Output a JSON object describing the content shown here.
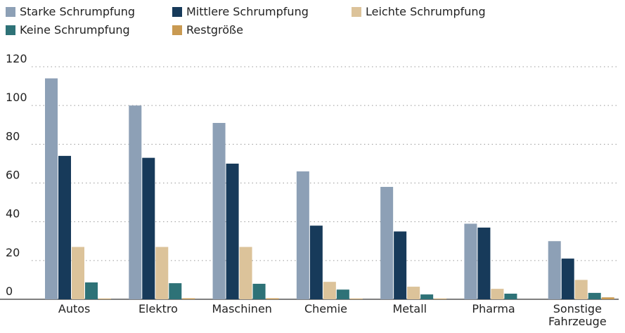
{
  "chart_data": {
    "type": "bar",
    "categories": [
      "Autos",
      "Elektro",
      "Maschinen",
      "Chemie",
      "Metall",
      "Pharma",
      "Sonstige Fahrzeuge"
    ],
    "series": [
      {
        "name": "Starke Schrumpfung",
        "color": "#8da0b6",
        "values": [
          114,
          100,
          91,
          66,
          58,
          39,
          30
        ]
      },
      {
        "name": "Mittlere Schrumpfung",
        "color": "#173a5a",
        "values": [
          74,
          73,
          70,
          38,
          35,
          37,
          21
        ]
      },
      {
        "name": "Leichte Schrumpfung",
        "color": "#dcc39a",
        "values": [
          27,
          27,
          27,
          9,
          6.5,
          5.4,
          10
        ]
      },
      {
        "name": "Keine Schrumpfung",
        "color": "#2e7277",
        "values": [
          8.7,
          8.3,
          8,
          5,
          2.5,
          2.9,
          3.3
        ]
      },
      {
        "name": "Restgröße",
        "color": "#c99a52",
        "values": [
          0.3,
          0.5,
          0.5,
          0.3,
          0.3,
          0,
          1
        ]
      }
    ],
    "ylim": [
      0,
      120
    ],
    "yticks": [
      0,
      20,
      40,
      60,
      80,
      100,
      120
    ],
    "grid": true
  }
}
